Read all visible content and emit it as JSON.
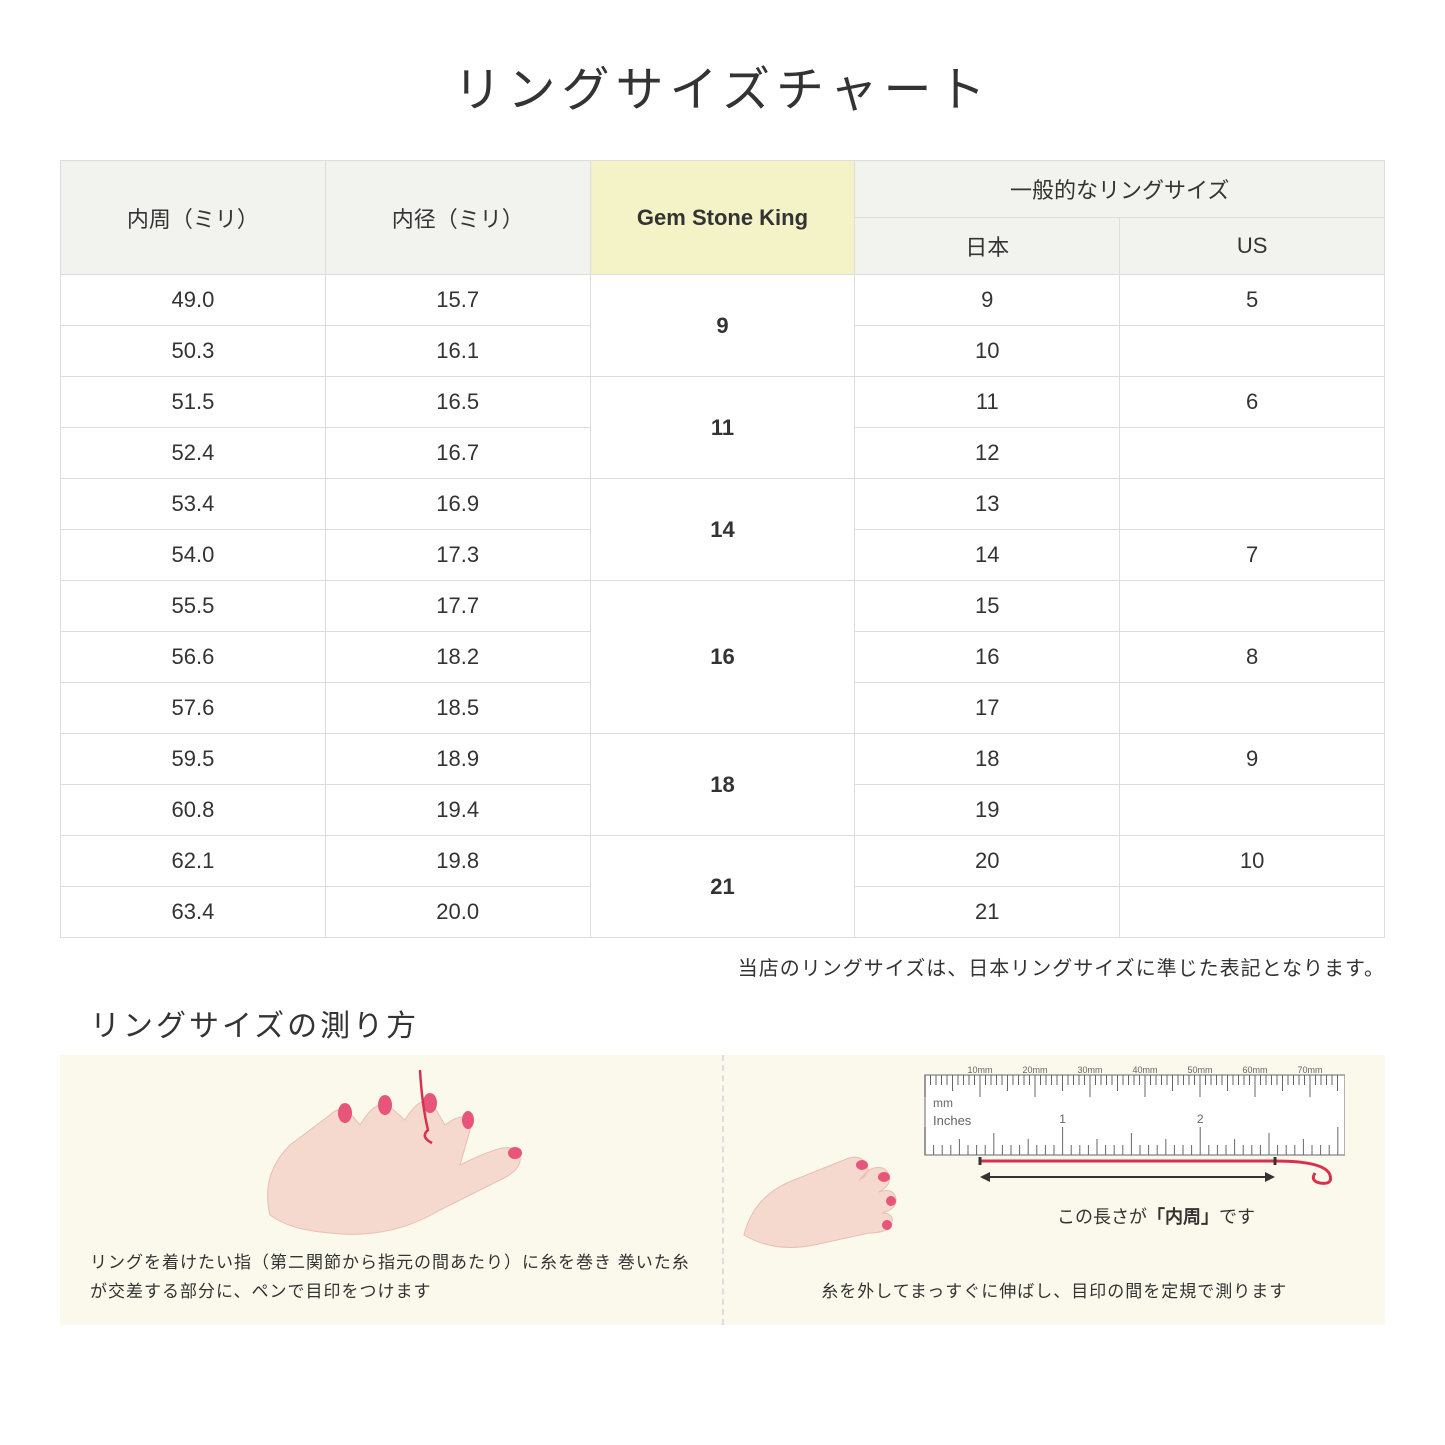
{
  "title": "リングサイズチャート",
  "table": {
    "headers": {
      "col1": "内周（ミリ）",
      "col2": "内径（ミリ）",
      "col3": "Gem Stone King",
      "col4_group": "一般的なリングサイズ",
      "col4a": "日本",
      "col4b": "US"
    },
    "groups": [
      {
        "gsk": "9",
        "rows": [
          {
            "c1": "49.0",
            "c2": "15.7",
            "jp": "9",
            "us": "5"
          },
          {
            "c1": "50.3",
            "c2": "16.1",
            "jp": "10",
            "us": ""
          }
        ]
      },
      {
        "gsk": "11",
        "rows": [
          {
            "c1": "51.5",
            "c2": "16.5",
            "jp": "11",
            "us": "6"
          },
          {
            "c1": "52.4",
            "c2": "16.7",
            "jp": "12",
            "us": ""
          }
        ]
      },
      {
        "gsk": "14",
        "rows": [
          {
            "c1": "53.4",
            "c2": "16.9",
            "jp": "13",
            "us": ""
          },
          {
            "c1": "54.0",
            "c2": "17.3",
            "jp": "14",
            "us": "7"
          }
        ]
      },
      {
        "gsk": "16",
        "rows": [
          {
            "c1": "55.5",
            "c2": "17.7",
            "jp": "15",
            "us": ""
          },
          {
            "c1": "56.6",
            "c2": "18.2",
            "jp": "16",
            "us": "8"
          },
          {
            "c1": "57.6",
            "c2": "18.5",
            "jp": "17",
            "us": ""
          }
        ]
      },
      {
        "gsk": "18",
        "rows": [
          {
            "c1": "59.5",
            "c2": "18.9",
            "jp": "18",
            "us": "9"
          },
          {
            "c1": "60.8",
            "c2": "19.4",
            "jp": "19",
            "us": ""
          }
        ]
      },
      {
        "gsk": "21",
        "rows": [
          {
            "c1": "62.1",
            "c2": "19.8",
            "jp": "20",
            "us": "10"
          },
          {
            "c1": "63.4",
            "c2": "20.0",
            "jp": "21",
            "us": ""
          }
        ]
      }
    ]
  },
  "note": "当店のリングサイズは、日本リングサイズに準じた表記となります。",
  "howto": {
    "title": "リングサイズの測り方",
    "left_text": "リングを着けたい指（第二関節から指元の間あたり）に糸を巻き\n巻いた糸が交差する部分に、ペンで目印をつけます",
    "right_text": "糸を外してまっすぐに伸ばし、目印の間を定規で測ります",
    "ruler_caption_pre": "この長さが",
    "ruler_caption_bold": "「内周」",
    "ruler_caption_post": "です",
    "ruler_mm_label": "mm",
    "ruler_inches_label": "Inches",
    "ruler_mm_ticks": [
      "10mm",
      "20mm",
      "30mm",
      "40mm",
      "50mm",
      "60mm",
      "70mm"
    ],
    "ruler_inch_ticks": [
      "1",
      "2"
    ]
  },
  "colors": {
    "header_bg": "#f2f2ee",
    "highlight_bg": "#f3f3c7",
    "border": "#dddddd",
    "howto_bg": "#fbf9ec",
    "skin": "#f5d9ce",
    "skin_dark": "#e8bfb0",
    "nail": "#e8557a",
    "thread": "#d9304f"
  }
}
